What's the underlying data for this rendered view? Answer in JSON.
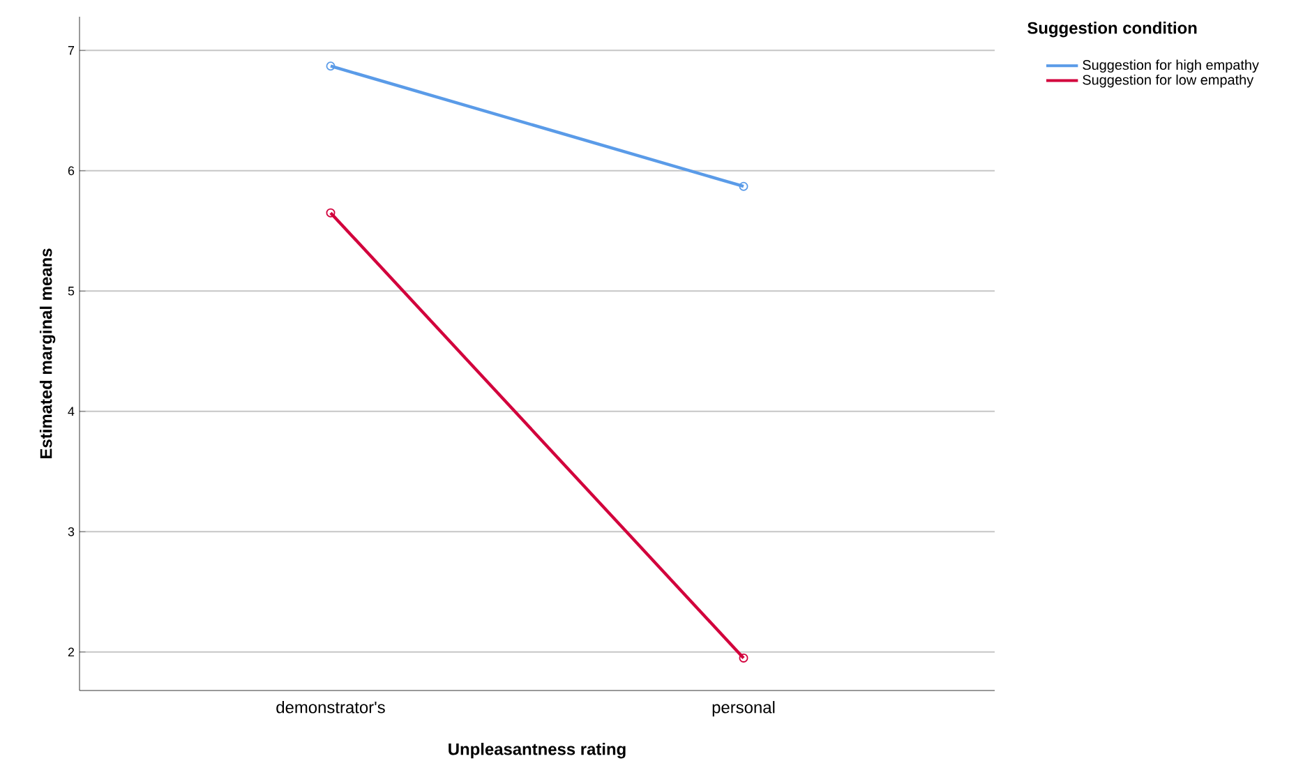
{
  "chart_data": {
    "type": "line",
    "xlabel": "Unpleasantness rating",
    "ylabel": "Estimated marginal means",
    "legend_title": "Suggestion condition",
    "categories": [
      "demonstrator's",
      "personal"
    ],
    "series": [
      {
        "name": "Suggestion for high empathy",
        "color": "#5a9be8",
        "values": [
          6.87,
          5.87
        ]
      },
      {
        "name": "Suggestion for low empathy",
        "color": "#d2003c",
        "values": [
          5.65,
          1.95
        ]
      }
    ],
    "ylim": [
      1.68,
      7.28
    ],
    "yticks": [
      2,
      3,
      4,
      5,
      6,
      7
    ],
    "grid": "y",
    "legend": "top right",
    "marker": "circle",
    "line_style": "solid"
  }
}
